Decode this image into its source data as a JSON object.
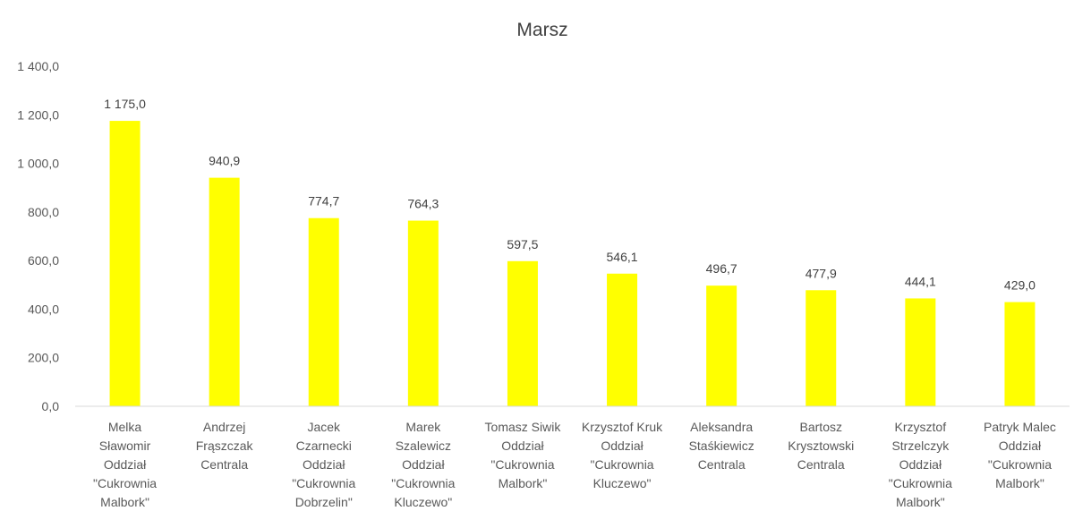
{
  "chart_data": {
    "type": "bar",
    "title": "Marsz",
    "xlabel": "",
    "ylabel": "",
    "ylim": [
      0,
      1400
    ],
    "yticks": [
      0,
      200,
      400,
      600,
      800,
      1000,
      1200,
      1400
    ],
    "ytick_labels": [
      "0,0",
      "200,0",
      "400,0",
      "600,0",
      "800,0",
      "1 000,0",
      "1 200,0",
      "1 400,0"
    ],
    "grid": false,
    "legend": "none",
    "bar_color": "#FFFF00",
    "categories": [
      [
        "Melka",
        "Sławomir",
        "Oddział",
        "\"Cukrownia",
        "Malbork\""
      ],
      [
        "Andrzej",
        "Frąszczak",
        "Centrala"
      ],
      [
        "Jacek",
        "Czarnecki",
        "Oddział",
        "\"Cukrownia",
        "Dobrzelin\""
      ],
      [
        "Marek",
        "Szalewicz",
        "Oddział",
        "\"Cukrownia",
        "Kluczewo\""
      ],
      [
        "Tomasz Siwik",
        "Oddział",
        "\"Cukrownia",
        "Malbork\""
      ],
      [
        "Krzysztof Kruk",
        "Oddział",
        "\"Cukrownia",
        "Kluczewo\""
      ],
      [
        "Aleksandra",
        "Staśkiewicz",
        "Centrala"
      ],
      [
        "Bartosz",
        "Krysztowski",
        "Centrala"
      ],
      [
        "Krzysztof",
        "Strzelczyk",
        "Oddział",
        "\"Cukrownia",
        "Malbork\""
      ],
      [
        "Patryk Malec",
        "Oddział",
        "\"Cukrownia",
        "Malbork\""
      ]
    ],
    "values": [
      1175.0,
      940.9,
      774.7,
      764.3,
      597.5,
      546.1,
      496.7,
      477.9,
      444.1,
      429.0
    ],
    "value_labels": [
      "1 175,0",
      "940,9",
      "774,7",
      "764,3",
      "597,5",
      "546,1",
      "496,7",
      "477,9",
      "444,1",
      "429,0"
    ]
  }
}
